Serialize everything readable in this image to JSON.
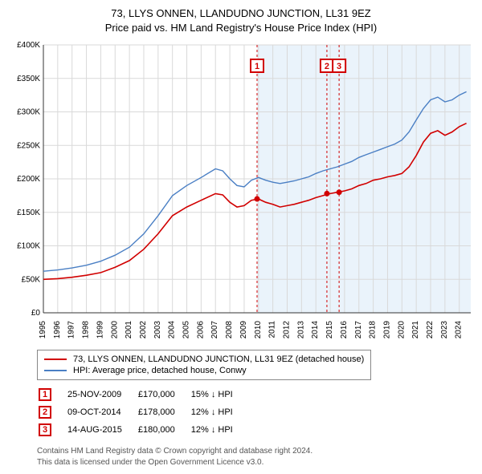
{
  "title_line1": "73, LLYS ONNEN, LLANDUDNO JUNCTION, LL31 9EZ",
  "title_line2": "Price paid vs. HM Land Registry's House Price Index (HPI)",
  "chart": {
    "type": "line",
    "background_color": "#ffffff",
    "shade_band_color": "#eaf3fb",
    "grid_color": "#d9d9d9",
    "axis_color": "#333333",
    "x_years": [
      1995,
      1996,
      1997,
      1998,
      1999,
      2000,
      2001,
      2002,
      2003,
      2004,
      2005,
      2006,
      2007,
      2008,
      2009,
      2010,
      2011,
      2012,
      2013,
      2014,
      2015,
      2016,
      2017,
      2018,
      2019,
      2020,
      2021,
      2022,
      2023,
      2024
    ],
    "y_min": 0,
    "y_max": 400000,
    "y_step": 50000,
    "y_prefix": "£",
    "y_suffix": "K",
    "shade_from_year": 2009.9,
    "series": [
      {
        "name": "73, LLYS ONNEN, LLANDUDNO JUNCTION, LL31 9EZ (detached house)",
        "color": "#d10000",
        "line_width": 1.6,
        "points": [
          [
            1995,
            50000
          ],
          [
            1996,
            51000
          ],
          [
            1997,
            53000
          ],
          [
            1998,
            56000
          ],
          [
            1999,
            60000
          ],
          [
            2000,
            68000
          ],
          [
            2001,
            78000
          ],
          [
            2002,
            95000
          ],
          [
            2003,
            118000
          ],
          [
            2004,
            145000
          ],
          [
            2005,
            158000
          ],
          [
            2006,
            168000
          ],
          [
            2007,
            178000
          ],
          [
            2007.5,
            176000
          ],
          [
            2008,
            165000
          ],
          [
            2008.5,
            158000
          ],
          [
            2009,
            160000
          ],
          [
            2009.5,
            168000
          ],
          [
            2010,
            170000
          ],
          [
            2010.5,
            165000
          ],
          [
            2011,
            162000
          ],
          [
            2011.5,
            158000
          ],
          [
            2012,
            160000
          ],
          [
            2012.5,
            162000
          ],
          [
            2013,
            165000
          ],
          [
            2013.5,
            168000
          ],
          [
            2014,
            172000
          ],
          [
            2014.5,
            175000
          ],
          [
            2015,
            178000
          ],
          [
            2015.5,
            180000
          ],
          [
            2016,
            182000
          ],
          [
            2016.5,
            185000
          ],
          [
            2017,
            190000
          ],
          [
            2017.5,
            193000
          ],
          [
            2018,
            198000
          ],
          [
            2018.5,
            200000
          ],
          [
            2019,
            203000
          ],
          [
            2019.5,
            205000
          ],
          [
            2020,
            208000
          ],
          [
            2020.5,
            218000
          ],
          [
            2021,
            235000
          ],
          [
            2021.5,
            255000
          ],
          [
            2022,
            268000
          ],
          [
            2022.5,
            272000
          ],
          [
            2023,
            265000
          ],
          [
            2023.5,
            270000
          ],
          [
            2024,
            278000
          ],
          [
            2024.5,
            283000
          ]
        ]
      },
      {
        "name": "HPI: Average price, detached house, Conwy",
        "color": "#4a7fc4",
        "line_width": 1.4,
        "points": [
          [
            1995,
            62000
          ],
          [
            1996,
            64000
          ],
          [
            1997,
            67000
          ],
          [
            1998,
            71000
          ],
          [
            1999,
            77000
          ],
          [
            2000,
            86000
          ],
          [
            2001,
            98000
          ],
          [
            2002,
            118000
          ],
          [
            2003,
            145000
          ],
          [
            2004,
            175000
          ],
          [
            2005,
            190000
          ],
          [
            2006,
            202000
          ],
          [
            2007,
            215000
          ],
          [
            2007.5,
            212000
          ],
          [
            2008,
            200000
          ],
          [
            2008.5,
            190000
          ],
          [
            2009,
            188000
          ],
          [
            2009.5,
            198000
          ],
          [
            2010,
            202000
          ],
          [
            2010.5,
            198000
          ],
          [
            2011,
            195000
          ],
          [
            2011.5,
            193000
          ],
          [
            2012,
            195000
          ],
          [
            2012.5,
            197000
          ],
          [
            2013,
            200000
          ],
          [
            2013.5,
            203000
          ],
          [
            2014,
            208000
          ],
          [
            2014.5,
            212000
          ],
          [
            2015,
            215000
          ],
          [
            2015.5,
            218000
          ],
          [
            2016,
            222000
          ],
          [
            2016.5,
            226000
          ],
          [
            2017,
            232000
          ],
          [
            2017.5,
            236000
          ],
          [
            2018,
            240000
          ],
          [
            2018.5,
            244000
          ],
          [
            2019,
            248000
          ],
          [
            2019.5,
            252000
          ],
          [
            2020,
            258000
          ],
          [
            2020.5,
            270000
          ],
          [
            2021,
            288000
          ],
          [
            2021.5,
            305000
          ],
          [
            2022,
            318000
          ],
          [
            2022.5,
            322000
          ],
          [
            2023,
            315000
          ],
          [
            2023.5,
            318000
          ],
          [
            2024,
            325000
          ],
          [
            2024.5,
            330000
          ]
        ]
      }
    ],
    "sale_markers": [
      {
        "label": "1",
        "year": 2009.9,
        "price": 170000
      },
      {
        "label": "2",
        "year": 2014.77,
        "price": 178000
      },
      {
        "label": "3",
        "year": 2015.62,
        "price": 180000
      }
    ],
    "marker_line_color": "#d10000",
    "marker_dot_color": "#d10000",
    "font_size_axis": 10,
    "font_size_title": 13
  },
  "legend": {
    "series_a": "73, LLYS ONNEN, LLANDUDNO JUNCTION, LL31 9EZ (detached house)",
    "series_a_color": "#d10000",
    "series_b": "HPI: Average price, detached house, Conwy",
    "series_b_color": "#4a7fc4"
  },
  "marker_rows": [
    {
      "badge": "1",
      "date": "25-NOV-2009",
      "price": "£170,000",
      "delta": "15% ↓ HPI"
    },
    {
      "badge": "2",
      "date": "09-OCT-2014",
      "price": "£178,000",
      "delta": "12% ↓ HPI"
    },
    {
      "badge": "3",
      "date": "14-AUG-2015",
      "price": "£180,000",
      "delta": "12% ↓ HPI"
    }
  ],
  "footer_line1": "Contains HM Land Registry data © Crown copyright and database right 2024.",
  "footer_line2": "This data is licensed under the Open Government Licence v3.0."
}
